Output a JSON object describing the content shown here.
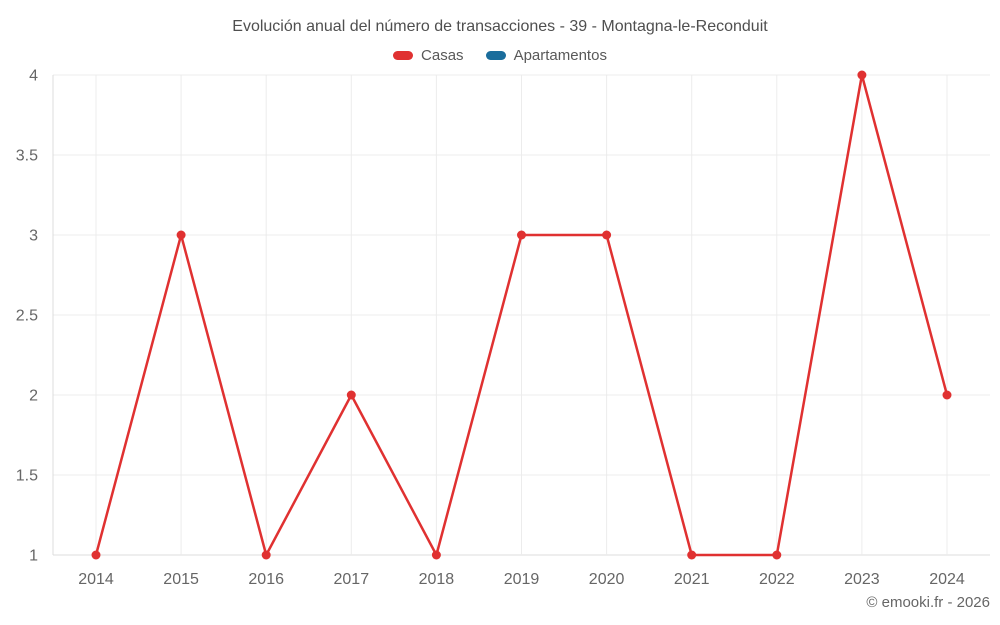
{
  "title": "Evolución anual del número de transacciones - 39 - Montagna-le-Reconduit",
  "footer": "© emooki.fr - 2026",
  "legend": [
    {
      "label": "Casas",
      "color": "#e03131"
    },
    {
      "label": "Apartamentos",
      "color": "#1a6d9c"
    }
  ],
  "chart_data": {
    "type": "line",
    "title": "Evolución anual del número de transacciones - 39 - Montagna-le-Reconduit",
    "x": [
      2014,
      2015,
      2016,
      2017,
      2018,
      2019,
      2020,
      2021,
      2022,
      2023,
      2024
    ],
    "x_labels": [
      "2014",
      "2015",
      "2016",
      "2017",
      "2018",
      "2019",
      "2020",
      "2021",
      "2022",
      "2023",
      "2024"
    ],
    "series": [
      {
        "name": "Casas",
        "color": "#e03131",
        "values": [
          1,
          3,
          1,
          2,
          1,
          3,
          3,
          1,
          1,
          4,
          2
        ]
      },
      {
        "name": "Apartamentos",
        "color": "#1a6d9c",
        "values": []
      }
    ],
    "ylim": [
      1,
      4
    ],
    "yticks": [
      1,
      1.5,
      2,
      2.5,
      3,
      3.5,
      4
    ],
    "ytick_labels": [
      "1",
      "1.5",
      "2",
      "2.5",
      "3",
      "3.5",
      "4"
    ],
    "grid": true,
    "legend_position": "top",
    "grid_color": "#ececec",
    "axis_color": "#dcdcdc"
  }
}
